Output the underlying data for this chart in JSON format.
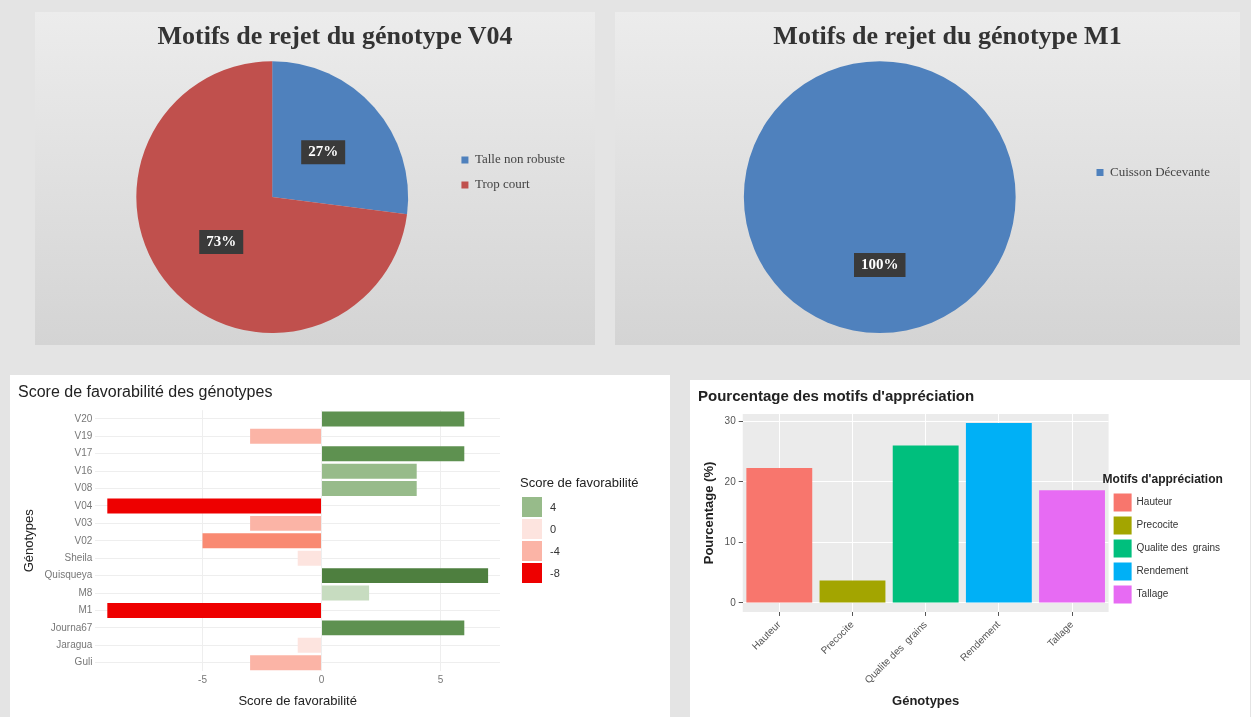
{
  "chart_data": [
    {
      "type": "pie",
      "title": "Motifs de rejet du génotype V04",
      "categories": [
        "Talle non robuste",
        "Trop court"
      ],
      "values": [
        27,
        73
      ],
      "colors": [
        "#4f81bd",
        "#c0504d"
      ],
      "value_labels": [
        "27%",
        "73%"
      ],
      "legend": "right"
    },
    {
      "type": "pie",
      "title": "Motifs de rejet du génotype M1",
      "categories": [
        "Cuisson Décevante"
      ],
      "values": [
        100
      ],
      "colors": [
        "#4f81bd"
      ],
      "value_labels": [
        "100%"
      ],
      "legend": "right"
    },
    {
      "type": "bar",
      "orientation": "horizontal",
      "title": "Score de favorabilité des génotypes",
      "xlabel": "Score de favorabilité",
      "ylabel": "Génotypes",
      "categories": [
        "V20",
        "V19",
        "V17",
        "V16",
        "V08",
        "V04",
        "V03",
        "V02",
        "Sheila",
        "Quisqueya",
        "M8",
        "M1",
        "Journa67",
        "Jaragua",
        "Guli"
      ],
      "values": [
        6,
        -3,
        6,
        4,
        4,
        -9,
        -3,
        -5,
        -1,
        7,
        2,
        -9,
        6,
        -1,
        -3
      ],
      "colors": [
        "#5e9150",
        "#fbb4a6",
        "#5e9150",
        "#97bb8a",
        "#97bb8a",
        "#ee0000",
        "#fbb4a6",
        "#f98a72",
        "#fde4df",
        "#4e7f3f",
        "#c7dcc0",
        "#ee0000",
        "#5e9150",
        "#fde4df",
        "#fbb4a6"
      ],
      "xlim": [
        -9.5,
        7.5
      ],
      "xticks": [
        -5,
        0,
        5
      ],
      "grid": true,
      "clabel": "Score de favorabilité",
      "cticks": [
        4,
        0,
        -4,
        -8
      ]
    },
    {
      "type": "bar",
      "title": "Pourcentage des motifs d'appréciation",
      "xlabel": "Génotypes",
      "ylabel": "Pourcentage (%)",
      "categories": [
        "Hauteur",
        "Precocite",
        "Qualite des  grains",
        "Rendement",
        "Tallage"
      ],
      "series": [
        {
          "name": "Hauteur",
          "color": "#f8766d",
          "values": [
            22.3,
            null,
            null,
            null,
            null
          ]
        },
        {
          "name": "Precocite",
          "color": "#a3a500",
          "values": [
            null,
            3.7,
            null,
            null,
            null
          ]
        },
        {
          "name": "Qualite des  grains",
          "color": "#00bf7d",
          "values": [
            null,
            null,
            26,
            null,
            null
          ]
        },
        {
          "name": "Rendement",
          "color": "#00b0f6",
          "values": [
            null,
            null,
            null,
            29.7,
            null
          ]
        },
        {
          "name": "Tallage",
          "color": "#e76bf3",
          "values": [
            null,
            null,
            null,
            null,
            18.6
          ]
        }
      ],
      "ylim": [
        -1.5,
        31.2
      ],
      "yticks": [
        0,
        10,
        20,
        30
      ],
      "grid": true,
      "legend": "right",
      "legend_title": "Motifs d'appréciation"
    }
  ]
}
